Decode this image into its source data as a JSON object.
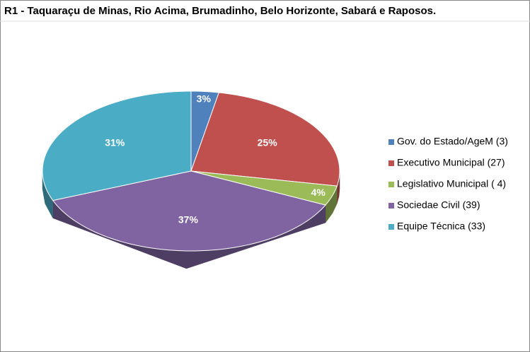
{
  "chart_data": {
    "type": "pie3d",
    "title": "R1 - Taquaraçu de Minas, Rio Acima, Brumadinho, Belo Horizonte, Sabará e Raposos.",
    "categories": [
      "Gov. do Estado/AgeM (3)",
      "Executivo Municipal (27)",
      "Legislativo Municipal ( 4)",
      "Sociedae Civil (39)",
      "Equipe Técnica (33)"
    ],
    "values": [
      3,
      25,
      4,
      37,
      31
    ],
    "value_labels": [
      "3%",
      "25%",
      "4%",
      "37%",
      "31%"
    ],
    "colors": [
      "#4f81bd",
      "#c0504d",
      "#9bbb59",
      "#8064a2",
      "#4bacc6"
    ],
    "legend": "right"
  }
}
